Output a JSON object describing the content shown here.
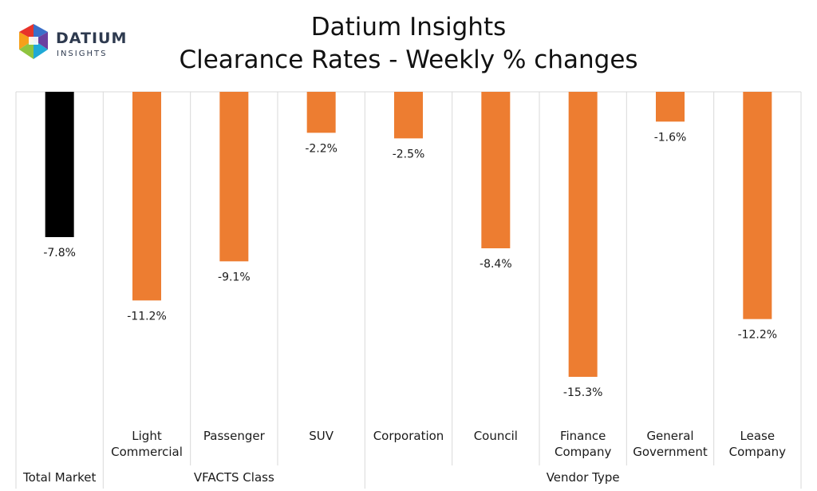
{
  "logo": {
    "word1": "DATIUM",
    "word2": "INSIGHTS"
  },
  "title_line1": "Datium Insights",
  "title_line2": "Clearance Rates - Weekly % changes",
  "colors": {
    "total": "#000000",
    "segment": "#ED7D31",
    "grid": "#d9d9d9"
  },
  "chart_data": {
    "type": "bar",
    "title": "Datium Insights Clearance Rates - Weekly % changes",
    "categories": [
      "Total Market",
      "Light Commercial",
      "Passenger",
      "SUV",
      "Corporation",
      "Council",
      "Finance Company",
      "General Government",
      "Lease Company"
    ],
    "values": [
      -7.8,
      -11.2,
      -9.1,
      -2.2,
      -2.5,
      -8.4,
      -15.3,
      -1.6,
      -12.2
    ],
    "data_labels": [
      "-7.8%",
      "-11.2%",
      "-9.1%",
      "-2.2%",
      "-2.5%",
      "-8.4%",
      "-15.3%",
      "-1.6%",
      "-12.2%"
    ],
    "category_lines": [
      [
        "Total Market"
      ],
      [
        "Light",
        "Commercial"
      ],
      [
        "Passenger"
      ],
      [
        "SUV"
      ],
      [
        "Corporation"
      ],
      [
        "Council"
      ],
      [
        "Finance",
        "Company"
      ],
      [
        "General",
        "Government"
      ],
      [
        "Lease",
        "Company"
      ]
    ],
    "groups": [
      {
        "label": "",
        "start": 0,
        "end": 0
      },
      {
        "label": "VFACTS Class",
        "start": 1,
        "end": 3
      },
      {
        "label": "Vendor Type",
        "start": 4,
        "end": 8
      }
    ],
    "ylim": [
      -17.4,
      0
    ],
    "xlabel": "",
    "ylabel": "",
    "grid": false,
    "legend": "none"
  }
}
